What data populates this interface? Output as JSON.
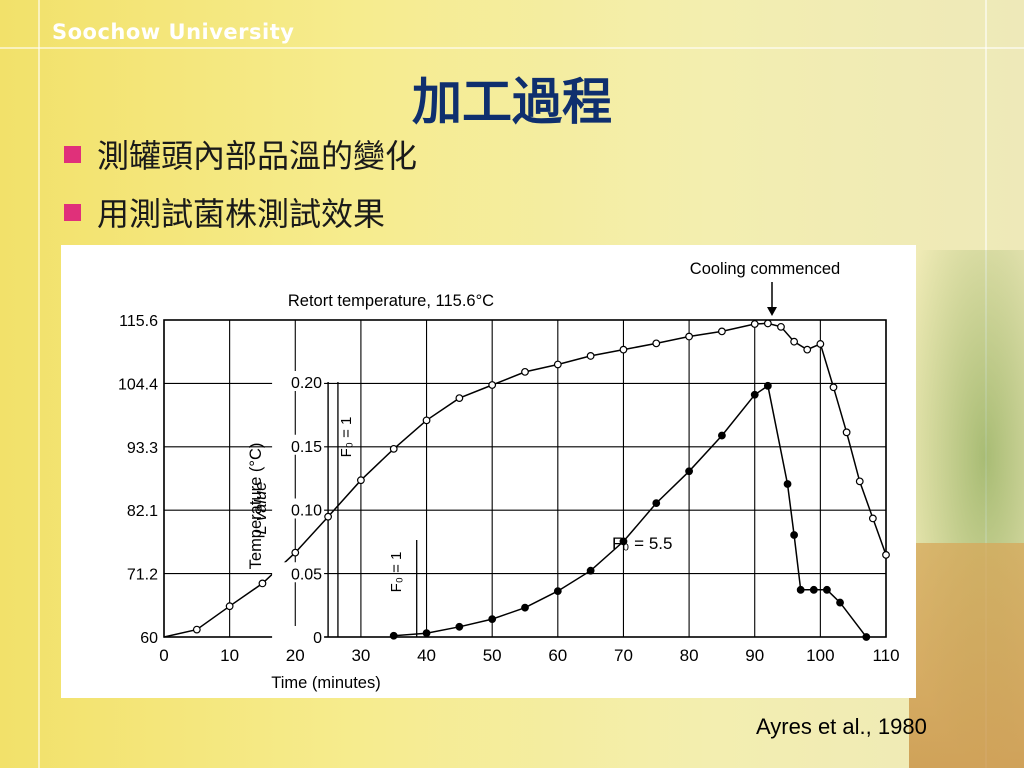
{
  "slide": {
    "brand": "Soochow University",
    "title": "加工過程",
    "bullets": [
      "測罐頭內部品溫的變化",
      "用測試菌株測試效果"
    ],
    "credit": "Ayres et al., 1980"
  },
  "chart_data": {
    "type": "line",
    "title": "Retort temperature, 115.6°C",
    "xlabel": "Time (minutes)",
    "ylabel": "Temperature (°C)",
    "xlim": [
      0,
      110
    ],
    "ylim": [
      60,
      115.6
    ],
    "x_ticks": [
      "0",
      "10",
      "20",
      "30",
      "40",
      "50",
      "60",
      "70",
      "80",
      "90",
      "100",
      "110"
    ],
    "y_ticks": [
      "60",
      "71.2",
      "82.1",
      "93.3",
      "104.4",
      "115.6"
    ],
    "secondary_axis": {
      "label": "L value",
      "ticks": [
        "0",
        "0.05",
        "0.10",
        "0.15",
        "0.20"
      ],
      "range": [
        0,
        0.2
      ]
    },
    "grid": true,
    "annotations": {
      "cooling": "Cooling commenced",
      "cooling_x": 93,
      "f0_vertical_upper": "F₀ = 1",
      "f0_vertical_lower": "F₀ = 1",
      "f0_series": "F₀ = 5.5"
    },
    "series": [
      {
        "name": "",
        "marker": "open",
        "axis": "temperature",
        "points": [
          [
            5,
            61.3
          ],
          [
            10,
            65.4
          ],
          [
            15,
            69.4
          ],
          [
            20,
            74.8
          ],
          [
            25,
            81.1
          ],
          [
            30,
            87.5
          ],
          [
            35,
            93.0
          ],
          [
            40,
            98.0
          ],
          [
            45,
            101.9
          ],
          [
            50,
            104.2
          ],
          [
            55,
            106.5
          ],
          [
            60,
            107.8
          ],
          [
            65,
            109.3
          ],
          [
            70,
            110.4
          ],
          [
            75,
            111.5
          ],
          [
            80,
            112.7
          ],
          [
            85,
            113.6
          ],
          [
            90,
            114.9
          ],
          [
            92,
            115.0
          ],
          [
            94,
            114.4
          ],
          [
            96,
            111.8
          ],
          [
            98,
            110.4
          ],
          [
            100,
            111.4
          ],
          [
            102,
            103.8
          ],
          [
            104,
            95.9
          ],
          [
            106,
            87.3
          ],
          [
            108,
            80.8
          ],
          [
            110,
            74.4
          ]
        ]
      },
      {
        "name": "",
        "marker": "filled",
        "axis": "L",
        "points": [
          [
            35,
            0.001
          ],
          [
            40,
            0.003
          ],
          [
            45,
            0.008
          ],
          [
            50,
            0.014
          ],
          [
            55,
            0.023
          ],
          [
            60,
            0.036
          ],
          [
            65,
            0.052
          ],
          [
            70,
            0.075
          ],
          [
            75,
            0.105
          ],
          [
            80,
            0.13
          ],
          [
            85,
            0.158
          ],
          [
            90,
            0.19
          ],
          [
            92,
            0.197
          ],
          [
            95,
            0.12
          ],
          [
            96,
            0.08
          ],
          [
            97,
            0.037
          ],
          [
            99,
            0.037
          ],
          [
            101,
            0.037
          ],
          [
            103,
            0.027
          ],
          [
            107,
            0
          ]
        ]
      }
    ]
  }
}
